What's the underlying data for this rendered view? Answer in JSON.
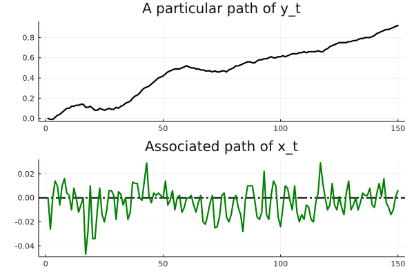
{
  "chart_data": [
    {
      "type": "line",
      "title": "A particular path of y_t",
      "xlabel": "",
      "ylabel": "",
      "xlim": [
        -3,
        153
      ],
      "ylim": [
        -0.03,
        0.96
      ],
      "xticks": [
        0,
        50,
        100,
        150
      ],
      "yticks": [
        0.0,
        0.2,
        0.4,
        0.6,
        0.8
      ],
      "ytick_labels": [
        "0.0",
        "0.2",
        "0.4",
        "0.6",
        "0.8"
      ],
      "grid": true,
      "legend": "none",
      "series": [
        {
          "color": "#000000",
          "x": [
            1,
            2,
            3,
            4,
            5,
            6,
            7,
            8,
            9,
            10,
            11,
            12,
            13,
            14,
            15,
            16,
            17,
            18,
            19,
            20,
            21,
            22,
            23,
            24,
            25,
            26,
            27,
            28,
            29,
            30,
            31,
            32,
            33,
            34,
            35,
            36,
            37,
            38,
            39,
            40,
            41,
            42,
            43,
            44,
            45,
            46,
            47,
            48,
            49,
            50,
            51,
            52,
            53,
            54,
            55,
            56,
            57,
            58,
            59,
            60,
            61,
            62,
            63,
            64,
            65,
            66,
            67,
            68,
            69,
            70,
            71,
            72,
            73,
            74,
            75,
            76,
            77,
            78,
            79,
            80,
            81,
            82,
            83,
            84,
            85,
            86,
            87,
            88,
            89,
            90,
            91,
            92,
            93,
            94,
            95,
            96,
            97,
            98,
            99,
            100,
            101,
            102,
            103,
            104,
            105,
            106,
            107,
            108,
            109,
            110,
            111,
            112,
            113,
            114,
            115,
            116,
            117,
            118,
            119,
            120,
            121,
            122,
            123,
            124,
            125,
            126,
            127,
            128,
            129,
            130,
            131,
            132,
            133,
            134,
            135,
            136,
            137,
            138,
            139,
            140,
            141,
            142,
            143,
            144,
            145,
            146,
            147,
            148,
            149,
            150
          ],
          "y": [
            0.0,
            -0.01,
            -0.01,
            0.01,
            0.03,
            0.04,
            0.06,
            0.08,
            0.1,
            0.1,
            0.12,
            0.12,
            0.13,
            0.13,
            0.14,
            0.14,
            0.11,
            0.11,
            0.12,
            0.1,
            0.08,
            0.08,
            0.1,
            0.09,
            0.08,
            0.09,
            0.1,
            0.09,
            0.09,
            0.11,
            0.1,
            0.12,
            0.13,
            0.15,
            0.16,
            0.17,
            0.2,
            0.22,
            0.23,
            0.25,
            0.28,
            0.3,
            0.31,
            0.32,
            0.34,
            0.36,
            0.38,
            0.4,
            0.41,
            0.42,
            0.44,
            0.46,
            0.47,
            0.48,
            0.49,
            0.49,
            0.49,
            0.5,
            0.51,
            0.52,
            0.51,
            0.5,
            0.5,
            0.49,
            0.49,
            0.48,
            0.48,
            0.47,
            0.47,
            0.47,
            0.46,
            0.47,
            0.46,
            0.46,
            0.47,
            0.47,
            0.46,
            0.48,
            0.49,
            0.5,
            0.52,
            0.52,
            0.53,
            0.54,
            0.55,
            0.56,
            0.56,
            0.55,
            0.55,
            0.57,
            0.58,
            0.58,
            0.59,
            0.59,
            0.6,
            0.61,
            0.6,
            0.6,
            0.61,
            0.61,
            0.62,
            0.61,
            0.62,
            0.63,
            0.64,
            0.64,
            0.64,
            0.65,
            0.65,
            0.66,
            0.65,
            0.66,
            0.66,
            0.66,
            0.66,
            0.67,
            0.66,
            0.66,
            0.68,
            0.69,
            0.71,
            0.72,
            0.73,
            0.74,
            0.75,
            0.75,
            0.75,
            0.75,
            0.76,
            0.76,
            0.77,
            0.77,
            0.78,
            0.79,
            0.79,
            0.8,
            0.8,
            0.8,
            0.81,
            0.82,
            0.84,
            0.85,
            0.86,
            0.87,
            0.88,
            0.88,
            0.89,
            0.9,
            0.91,
            0.92
          ]
        }
      ]
    },
    {
      "type": "line",
      "title": "Associated path of x_t",
      "xlabel": "",
      "ylabel": "",
      "xlim": [
        -3,
        153
      ],
      "ylim": [
        -0.049,
        0.032
      ],
      "xticks": [
        0,
        50,
        100,
        150
      ],
      "yticks": [
        -0.04,
        -0.02,
        0.0,
        0.02
      ],
      "ytick_labels": [
        "-0.04",
        "-0.02",
        "0.00",
        "0.02"
      ],
      "grid": true,
      "legend": "none",
      "reference_line": 0.0,
      "series": [
        {
          "color": "#008000",
          "x": [
            1,
            2,
            3,
            4,
            5,
            6,
            7,
            8,
            9,
            10,
            11,
            12,
            13,
            14,
            15,
            16,
            17,
            18,
            19,
            20,
            21,
            22,
            23,
            24,
            25,
            26,
            27,
            28,
            29,
            30,
            31,
            32,
            33,
            34,
            35,
            36,
            37,
            38,
            39,
            40,
            41,
            42,
            43,
            44,
            45,
            46,
            47,
            48,
            49,
            50,
            51,
            52,
            53,
            54,
            55,
            56,
            57,
            58,
            59,
            60,
            61,
            62,
            63,
            64,
            65,
            66,
            67,
            68,
            69,
            70,
            71,
            72,
            73,
            74,
            75,
            76,
            77,
            78,
            79,
            80,
            81,
            82,
            83,
            84,
            85,
            86,
            87,
            88,
            89,
            90,
            91,
            92,
            93,
            94,
            95,
            96,
            97,
            98,
            99,
            100,
            101,
            102,
            103,
            104,
            105,
            106,
            107,
            108,
            109,
            110,
            111,
            112,
            113,
            114,
            115,
            116,
            117,
            118,
            119,
            120,
            121,
            122,
            123,
            124,
            125,
            126,
            127,
            128,
            129,
            130,
            131,
            132,
            133,
            134,
            135,
            136,
            137,
            138,
            139,
            140,
            141,
            142,
            143,
            144,
            145,
            146,
            147,
            148,
            149,
            150
          ],
          "y": [
            0.0,
            -0.026,
            0.0,
            0.014,
            0.01,
            -0.006,
            0.01,
            0.016,
            0.004,
            0.002,
            -0.01,
            0.008,
            0.0,
            -0.012,
            -0.006,
            0.0,
            -0.047,
            -0.028,
            0.01,
            -0.034,
            -0.034,
            -0.01,
            0.008,
            -0.014,
            -0.02,
            -0.01,
            0.006,
            0.006,
            0.002,
            -0.018,
            0.005,
            0.003,
            -0.006,
            0.0,
            -0.018,
            -0.012,
            0.013,
            0.012,
            0.012,
            0.0,
            -0.002,
            0.014,
            0.029,
            0.001,
            -0.004,
            0.004,
            0.002,
            0.004,
            0.002,
            0.0,
            0.014,
            -0.006,
            -0.002,
            0.006,
            -0.01,
            0.0,
            0.002,
            -0.012,
            -0.008,
            0.0,
            0.0,
            0.002,
            -0.006,
            -0.012,
            -0.004,
            0.002,
            -0.02,
            -0.022,
            -0.014,
            -0.004,
            0.002,
            -0.025,
            -0.024,
            -0.016,
            0.002,
            0.004,
            -0.016,
            -0.02,
            -0.014,
            -0.002,
            0.002,
            -0.008,
            -0.014,
            -0.028,
            -0.002,
            0.01,
            0.01,
            0.01,
            -0.002,
            -0.016,
            -0.018,
            -0.012,
            0.022,
            -0.014,
            -0.018,
            0.002,
            0.014,
            0.01,
            -0.016,
            -0.024,
            -0.008,
            0.01,
            0.008,
            -0.002,
            -0.01,
            0.01,
            -0.012,
            -0.02,
            -0.014,
            -0.018,
            -0.006,
            -0.008,
            -0.018,
            -0.02,
            -0.004,
            0.004,
            0.029,
            0.012,
            0.0,
            -0.01,
            -0.006,
            0.012,
            -0.006,
            -0.01,
            0.001,
            -0.008,
            -0.014,
            0.004,
            0.014,
            -0.01,
            -0.006,
            0.0,
            -0.01,
            -0.004,
            0.004,
            0.002,
            0.002,
            0.008,
            -0.006,
            -0.008,
            0.004,
            0.012,
            0.001,
            0.016,
            -0.004,
            -0.008,
            -0.014,
            -0.01,
            0.001,
            0.006
          ]
        }
      ]
    }
  ]
}
